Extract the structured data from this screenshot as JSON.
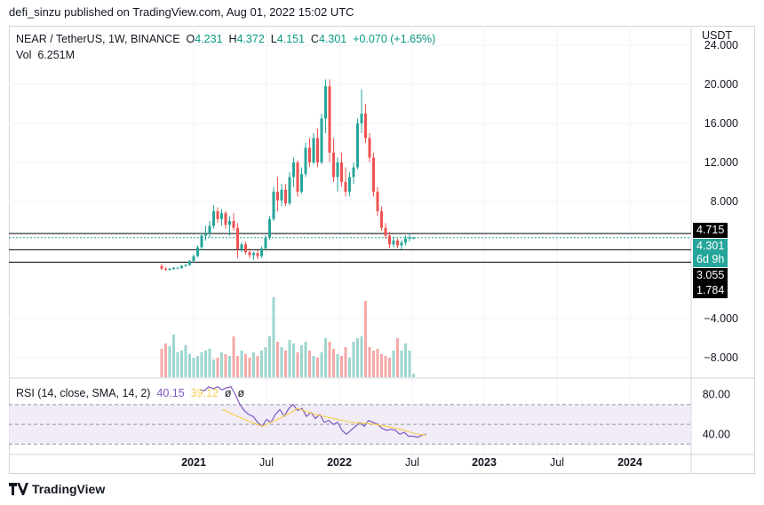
{
  "header": {
    "published_line": "defi_sinzu published on TradingView.com, Aug 01, 2022 15:02 UTC"
  },
  "legend": {
    "symbol": "NEAR / TetherUS, 1W, BINANCE",
    "open_label": "O",
    "open": "4.231",
    "high_label": "H",
    "high": "4.372",
    "low_label": "L",
    "low": "4.151",
    "close_label": "C",
    "close": "4.301",
    "change": "+0.070 (+1.65%)",
    "vol_label": "Vol",
    "vol": "6.251M"
  },
  "rsi_legend": {
    "label": "RSI (14, close, SMA, 14, 2)",
    "rsi": "40.15",
    "sma": "39.12",
    "na1": "ø",
    "na2": "ø"
  },
  "price_axis": {
    "currency": "USDT",
    "ticks": [
      "24.000",
      "20.000",
      "16.000",
      "12.000",
      "8.000",
      "−4.000",
      "−8.000"
    ]
  },
  "rsi_axis": {
    "ticks": [
      "80.00",
      "40.00"
    ]
  },
  "price_labels": {
    "top": "4.715",
    "current": "4.301",
    "countdown": "6d 9h",
    "mid": "3.055",
    "bottom": "1.784"
  },
  "time_axis": [
    "2021",
    "Jul",
    "2022",
    "Jul",
    "2023",
    "Jul",
    "2024"
  ],
  "footer": {
    "brand": "TradingView"
  },
  "colors": {
    "up": "#26a69a",
    "down": "#ef5350",
    "rsi": "#7e57c2",
    "sma": "#f7d154",
    "band": "#ede7f6"
  },
  "chart_data": {
    "type": "candlestick",
    "symbol": "NEAR / TetherUS",
    "timeframe": "1W",
    "ylim": [
      -10,
      26
    ],
    "horizontal_levels": [
      4.715,
      3.055,
      1.784
    ],
    "candles": [
      [
        1.4,
        1.6,
        1.0,
        1.1
      ],
      [
        1.1,
        1.3,
        0.9,
        1.0
      ],
      [
        1.0,
        1.2,
        0.9,
        1.1
      ],
      [
        1.1,
        1.3,
        1.0,
        1.2
      ],
      [
        1.2,
        1.3,
        1.1,
        1.2
      ],
      [
        1.2,
        1.5,
        1.1,
        1.4
      ],
      [
        1.4,
        1.6,
        1.3,
        1.5
      ],
      [
        1.5,
        2.0,
        1.4,
        1.9
      ],
      [
        1.9,
        2.6,
        1.8,
        2.4
      ],
      [
        2.4,
        3.5,
        2.3,
        3.3
      ],
      [
        3.3,
        4.8,
        3.0,
        4.5
      ],
      [
        4.5,
        5.5,
        4.0,
        4.7
      ],
      [
        4.7,
        6.0,
        4.3,
        5.5
      ],
      [
        5.5,
        7.6,
        5.2,
        7.0
      ],
      [
        7.0,
        7.4,
        5.8,
        6.2
      ],
      [
        6.2,
        7.2,
        5.5,
        6.8
      ],
      [
        6.8,
        7.0,
        5.2,
        5.6
      ],
      [
        5.6,
        6.5,
        4.5,
        6.0
      ],
      [
        6.0,
        6.8,
        5.0,
        5.3
      ],
      [
        5.3,
        5.8,
        2.2,
        3.1
      ],
      [
        3.1,
        3.8,
        2.8,
        3.6
      ],
      [
        3.6,
        3.9,
        2.6,
        2.8
      ],
      [
        2.8,
        3.2,
        2.2,
        2.5
      ],
      [
        2.5,
        2.9,
        2.0,
        2.7
      ],
      [
        2.7,
        3.0,
        2.1,
        2.4
      ],
      [
        2.4,
        3.4,
        2.2,
        3.2
      ],
      [
        3.2,
        4.5,
        3.0,
        4.3
      ],
      [
        4.3,
        6.5,
        4.1,
        6.2
      ],
      [
        6.2,
        9.5,
        6.0,
        9.0
      ],
      [
        9.0,
        10.5,
        7.0,
        8.1
      ],
      [
        8.1,
        9.8,
        7.5,
        9.2
      ],
      [
        9.2,
        9.8,
        7.5,
        7.8
      ],
      [
        7.8,
        11.0,
        7.6,
        10.5
      ],
      [
        10.5,
        12.5,
        9.5,
        12.0
      ],
      [
        12.0,
        12.2,
        8.5,
        9.0
      ],
      [
        9.0,
        11.5,
        8.8,
        10.8
      ],
      [
        10.8,
        14.0,
        10.5,
        13.5
      ],
      [
        13.5,
        14.5,
        11.5,
        12.0
      ],
      [
        12.0,
        15.0,
        11.8,
        14.5
      ],
      [
        14.5,
        15.5,
        11.5,
        12.0
      ],
      [
        12.0,
        17.0,
        11.8,
        16.5
      ],
      [
        16.5,
        20.5,
        15.0,
        19.8
      ],
      [
        19.8,
        20.5,
        12.0,
        13.0
      ],
      [
        13.0,
        14.5,
        10.0,
        10.5
      ],
      [
        10.5,
        12.5,
        9.0,
        12.0
      ],
      [
        12.0,
        13.0,
        9.5,
        10.0
      ],
      [
        10.0,
        11.5,
        8.5,
        9.0
      ],
      [
        9.0,
        11.0,
        8.5,
        10.5
      ],
      [
        10.5,
        12.0,
        9.8,
        11.5
      ],
      [
        11.5,
        16.5,
        11.3,
        16.0
      ],
      [
        16.0,
        19.5,
        15.0,
        17.0
      ],
      [
        17.0,
        18.0,
        14.0,
        14.5
      ],
      [
        14.5,
        15.0,
        12.0,
        12.5
      ],
      [
        12.5,
        13.0,
        8.5,
        9.0
      ],
      [
        9.0,
        9.5,
        6.5,
        7.0
      ],
      [
        7.0,
        7.5,
        5.0,
        5.3
      ],
      [
        5.3,
        5.8,
        4.2,
        4.5
      ],
      [
        4.5,
        4.9,
        3.2,
        3.6
      ],
      [
        3.6,
        4.4,
        3.3,
        4.0
      ],
      [
        4.0,
        4.2,
        3.2,
        3.5
      ],
      [
        3.5,
        4.0,
        3.1,
        3.8
      ],
      [
        3.8,
        4.5,
        3.5,
        4.2
      ],
      [
        4.2,
        4.8,
        3.9,
        4.3
      ],
      [
        4.23,
        4.37,
        4.15,
        4.3
      ]
    ],
    "volume_bars": [
      32,
      38,
      35,
      48,
      28,
      30,
      36,
      26,
      22,
      24,
      28,
      30,
      32,
      20,
      22,
      28,
      26,
      24,
      46,
      24,
      30,
      26,
      22,
      28,
      24,
      30,
      34,
      46,
      90,
      40,
      34,
      30,
      42,
      38,
      28,
      36,
      40,
      30,
      24,
      22,
      28,
      44,
      40,
      32,
      26,
      24,
      34,
      22,
      40,
      44,
      46,
      86,
      34,
      30,
      32,
      26,
      24,
      22,
      30,
      44,
      30,
      38,
      30,
      4
    ],
    "rsi": [
      [
        0,
        85
      ],
      [
        1,
        84
      ],
      [
        2,
        88
      ],
      [
        3,
        86
      ],
      [
        4,
        88
      ],
      [
        5,
        85
      ],
      [
        6,
        87
      ],
      [
        7,
        88
      ],
      [
        8,
        80
      ],
      [
        9,
        70
      ],
      [
        10,
        64
      ],
      [
        11,
        60
      ],
      [
        12,
        58
      ],
      [
        13,
        52
      ],
      [
        14,
        48
      ],
      [
        15,
        55
      ],
      [
        16,
        52
      ],
      [
        17,
        60
      ],
      [
        18,
        65
      ],
      [
        19,
        58
      ],
      [
        20,
        66
      ],
      [
        21,
        70
      ],
      [
        22,
        64
      ],
      [
        23,
        66
      ],
      [
        24,
        58
      ],
      [
        25,
        62
      ],
      [
        26,
        56
      ],
      [
        27,
        60
      ],
      [
        28,
        52
      ],
      [
        29,
        54
      ],
      [
        30,
        50
      ],
      [
        31,
        52
      ],
      [
        32,
        44
      ],
      [
        33,
        40
      ],
      [
        34,
        44
      ],
      [
        35,
        48
      ],
      [
        36,
        52
      ],
      [
        37,
        48
      ],
      [
        38,
        54
      ],
      [
        39,
        52
      ],
      [
        40,
        50
      ],
      [
        41,
        46
      ],
      [
        42,
        44
      ],
      [
        43,
        45
      ],
      [
        44,
        44
      ],
      [
        45,
        40
      ],
      [
        46,
        42
      ],
      [
        47,
        38
      ],
      [
        48,
        38
      ],
      [
        49,
        37
      ],
      [
        50,
        39
      ],
      [
        51,
        40.15
      ]
    ],
    "rsi_sma": [
      [
        5,
        65
      ],
      [
        10,
        55
      ],
      [
        14,
        48
      ],
      [
        18,
        56
      ],
      [
        22,
        66
      ],
      [
        26,
        60
      ],
      [
        30,
        56
      ],
      [
        34,
        52
      ],
      [
        38,
        51
      ],
      [
        42,
        48
      ],
      [
        46,
        44
      ],
      [
        49,
        40
      ],
      [
        51,
        39.12
      ]
    ],
    "rsi_bands": [
      70,
      50,
      30
    ],
    "rsi_ylim": [
      25,
      95
    ]
  }
}
